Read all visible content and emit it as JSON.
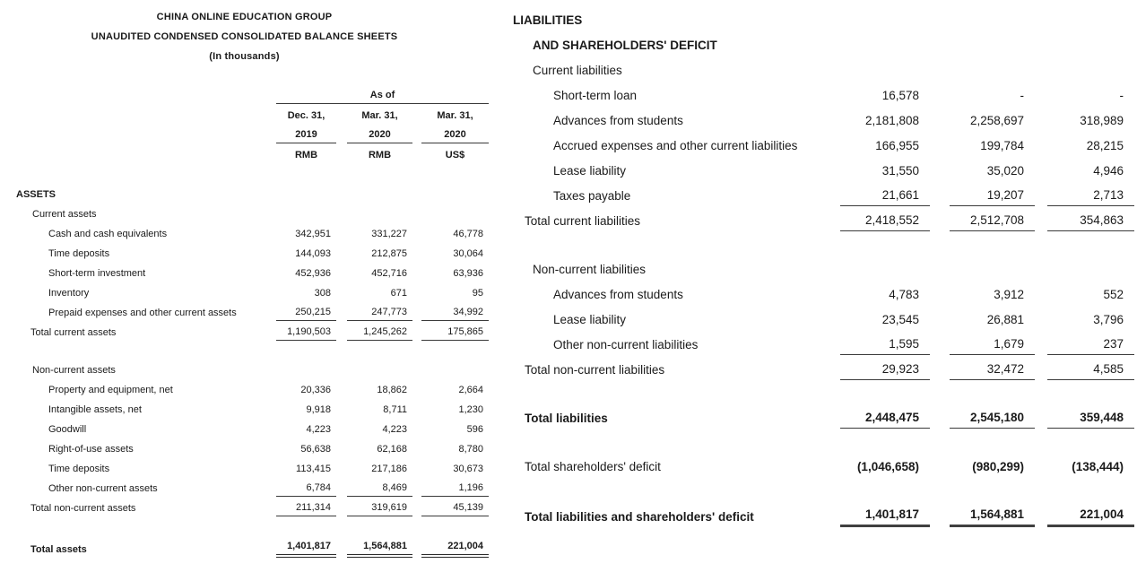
{
  "header": {
    "company": "CHINA ONLINE EDUCATION GROUP",
    "statement": "UNAUDITED CONDENSED CONSOLIDATED BALANCE SHEETS",
    "units": "(In thousands)"
  },
  "columns": {
    "as_of": "As of",
    "periods": [
      {
        "month": "Dec. 31,",
        "year": "2019",
        "currency": "RMB"
      },
      {
        "month": "Mar. 31,",
        "year": "2020",
        "currency": "RMB"
      },
      {
        "month": "Mar. 31,",
        "year": "2020",
        "currency": "US$"
      }
    ]
  },
  "assets": {
    "rows": [
      {
        "type": "section",
        "label": "ASSETS"
      },
      {
        "type": "subsection",
        "label": "Current assets"
      },
      {
        "type": "item",
        "label": "Cash and cash equivalents",
        "values": [
          "342,951",
          "331,227",
          "46,778"
        ]
      },
      {
        "type": "item",
        "label": "Time deposits",
        "values": [
          "144,093",
          "212,875",
          "30,064"
        ]
      },
      {
        "type": "item",
        "label": "Short-term investment",
        "values": [
          "452,936",
          "452,716",
          "63,936"
        ]
      },
      {
        "type": "item",
        "label": "Inventory",
        "values": [
          "308",
          "671",
          "95"
        ]
      },
      {
        "type": "item",
        "label": "Prepaid expenses and other current assets",
        "values": [
          "250,215",
          "247,773",
          "34,992"
        ],
        "rule": "single"
      },
      {
        "type": "total",
        "label": "Total current assets",
        "values": [
          "1,190,503",
          "1,245,262",
          "175,865"
        ],
        "rule": "single"
      },
      {
        "type": "spacer"
      },
      {
        "type": "subsection",
        "label": "Non-current assets"
      },
      {
        "type": "item",
        "label": "Property and equipment, net",
        "values": [
          "20,336",
          "18,862",
          "2,664"
        ]
      },
      {
        "type": "item",
        "label": "Intangible assets, net",
        "values": [
          "9,918",
          "8,711",
          "1,230"
        ]
      },
      {
        "type": "item",
        "label": "Goodwill",
        "values": [
          "4,223",
          "4,223",
          "596"
        ]
      },
      {
        "type": "item",
        "label": "Right-of-use assets",
        "values": [
          "56,638",
          "62,168",
          "8,780"
        ]
      },
      {
        "type": "item",
        "label": "Time deposits",
        "values": [
          "113,415",
          "217,186",
          "30,673"
        ]
      },
      {
        "type": "item",
        "label": "Other non-current assets",
        "values": [
          "6,784",
          "8,469",
          "1,196"
        ],
        "rule": "single"
      },
      {
        "type": "total",
        "label": "Total non-current assets",
        "values": [
          "211,314",
          "319,619",
          "45,139"
        ],
        "rule": "single"
      },
      {
        "type": "spacer"
      },
      {
        "type": "grandtotal",
        "label": "Total assets",
        "values": [
          "1,401,817",
          "1,564,881",
          "221,004"
        ],
        "rule": "double",
        "bold": true
      }
    ]
  },
  "liabilities": {
    "rows": [
      {
        "type": "section",
        "label": "LIABILITIES"
      },
      {
        "type": "section2",
        "label": "AND SHAREHOLDERS' DEFICIT"
      },
      {
        "type": "subsection",
        "label": "Current liabilities"
      },
      {
        "type": "item",
        "label": "Short-term loan",
        "values": [
          "16,578",
          "-",
          "-"
        ]
      },
      {
        "type": "item",
        "label": "Advances from students",
        "values": [
          "2,181,808",
          "2,258,697",
          "318,989"
        ]
      },
      {
        "type": "item",
        "label": "Accrued expenses and other current liabilities",
        "values": [
          "166,955",
          "199,784",
          "28,215"
        ]
      },
      {
        "type": "item",
        "label": "Lease liability",
        "values": [
          "31,550",
          "35,020",
          "4,946"
        ]
      },
      {
        "type": "item",
        "label": "Taxes payable",
        "values": [
          "21,661",
          "19,207",
          "2,713"
        ],
        "rule": "single"
      },
      {
        "type": "total",
        "label": "Total current liabilities",
        "values": [
          "2,418,552",
          "2,512,708",
          "354,863"
        ],
        "rule": "single"
      },
      {
        "type": "spacer"
      },
      {
        "type": "subsection",
        "label": "Non-current liabilities"
      },
      {
        "type": "item",
        "label": "Advances from students",
        "values": [
          "4,783",
          "3,912",
          "552"
        ]
      },
      {
        "type": "item",
        "label": "Lease liability",
        "values": [
          "23,545",
          "26,881",
          "3,796"
        ]
      },
      {
        "type": "item",
        "label": "Other non-current liabilities",
        "values": [
          "1,595",
          "1,679",
          "237"
        ],
        "rule": "single"
      },
      {
        "type": "total",
        "label": "Total non-current liabilities",
        "values": [
          "29,923",
          "32,472",
          "4,585"
        ],
        "rule": "single"
      },
      {
        "type": "spacer"
      },
      {
        "type": "total",
        "label": "Total liabilities",
        "values": [
          "2,448,475",
          "2,545,180",
          "359,448"
        ],
        "rule": "single",
        "bold": true
      },
      {
        "type": "spacer"
      },
      {
        "type": "total",
        "label": "Total shareholders' deficit",
        "values": [
          "(1,046,658)",
          "(980,299)",
          "(138,444)"
        ],
        "vbold": true
      },
      {
        "type": "spacer"
      },
      {
        "type": "grandtotal",
        "label": "Total liabilities and shareholders' deficit",
        "values": [
          "1,401,817",
          "1,564,881",
          "221,004"
        ],
        "rule": "thick",
        "bold": true
      }
    ]
  }
}
